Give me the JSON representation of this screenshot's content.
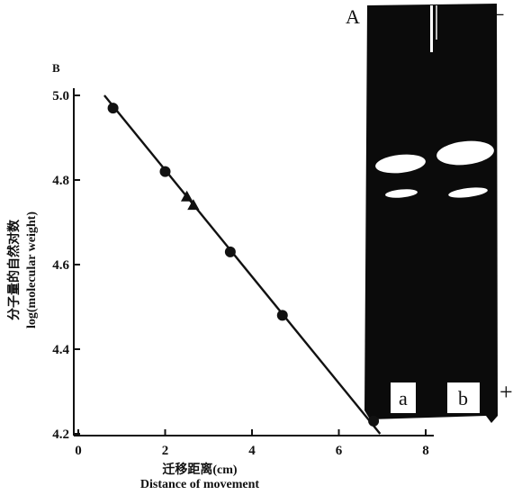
{
  "panels": {
    "gel_label": "A",
    "chart_label": "B"
  },
  "gel": {
    "lanes": [
      "a",
      "b"
    ],
    "top_pole": "−",
    "bottom_pole": "+",
    "background_color": "#0b0b0b",
    "band_color": "#ffffff"
  },
  "chart_data": {
    "type": "scatter",
    "title": "",
    "xlabel_cn": "迁移距离(cm)",
    "xlabel_en": "Distance of movement",
    "ylabel_cn": "分子量的自然对数",
    "ylabel_en": "log(molecular weight)",
    "xlim": [
      0,
      8
    ],
    "ylim": [
      4.2,
      5.0
    ],
    "x_ticks": [
      "0",
      "2",
      "4",
      "6",
      "8"
    ],
    "y_ticks": [
      "4.2",
      "4.4",
      "4.6",
      "4.8",
      "5.0"
    ],
    "series": [
      {
        "marker": "circle",
        "points": [
          [
            0.8,
            4.97
          ],
          [
            2.0,
            4.82
          ],
          [
            3.5,
            4.63
          ],
          [
            4.7,
            4.48
          ],
          [
            6.8,
            4.23
          ]
        ]
      },
      {
        "marker": "triangle",
        "points": [
          [
            2.5,
            4.76
          ],
          [
            2.65,
            4.74
          ]
        ]
      }
    ],
    "fit_line": {
      "x": [
        0.6,
        6.95
      ],
      "y": [
        5.0,
        4.2
      ]
    },
    "grid": false
  }
}
